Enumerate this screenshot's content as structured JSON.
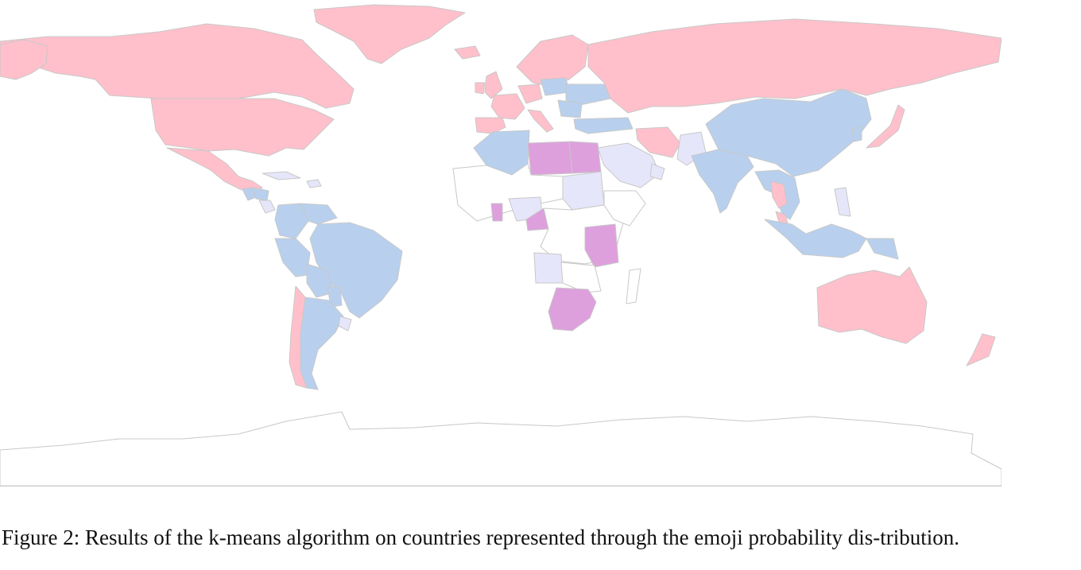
{
  "figure": {
    "caption": "Figure 2: Results of the k-means algorithm on countries represented through the emoji probability dis-tribution."
  },
  "map": {
    "type": "choropleth-world",
    "projection": "equirectangular",
    "legend": "none",
    "border_color": "#c8c8c8",
    "unassigned_color": "#ffffff",
    "clusters": [
      {
        "color": "#ffc0cb",
        "regions": [
          "Canada",
          "United States",
          "Mexico",
          "Greenland",
          "United Kingdom",
          "Ireland",
          "Iceland",
          "Norway",
          "Sweden",
          "Finland",
          "France",
          "Spain",
          "Portugal",
          "Germany",
          "Italy",
          "Russia",
          "Iran",
          "Japan",
          "Thailand",
          "Malaysia",
          "Chile",
          "Australia",
          "New Zealand"
        ]
      },
      {
        "color": "#b8d0ee",
        "regions": [
          "Guatemala",
          "Honduras",
          "Nicaragua",
          "Colombia",
          "Venezuela",
          "Ecuador",
          "Peru",
          "Brazil",
          "Bolivia",
          "Paraguay",
          "Argentina",
          "Morocco",
          "Algeria",
          "Poland",
          "Ukraine",
          "Romania",
          "Bulgaria",
          "Turkey",
          "China",
          "India",
          "Bangladesh",
          "Myanmar",
          "Vietnam",
          "Laos",
          "Cambodia",
          "South Korea",
          "Indonesia",
          "Papua New Guinea"
        ]
      },
      {
        "color": "#e6e6fa",
        "regions": [
          "Uruguay",
          "Nigeria",
          "Sudan",
          "Angola",
          "Saudi Arabia",
          "Oman",
          "Pakistan",
          "Philippines",
          "Cuba",
          "Dominican Republic"
        ]
      },
      {
        "color": "#dda0dd",
        "regions": [
          "Libya",
          "Egypt",
          "Ghana",
          "Cameroon",
          "Kenya",
          "Tanzania",
          "Botswana",
          "South Africa",
          "Zimbabwe"
        ]
      }
    ]
  }
}
